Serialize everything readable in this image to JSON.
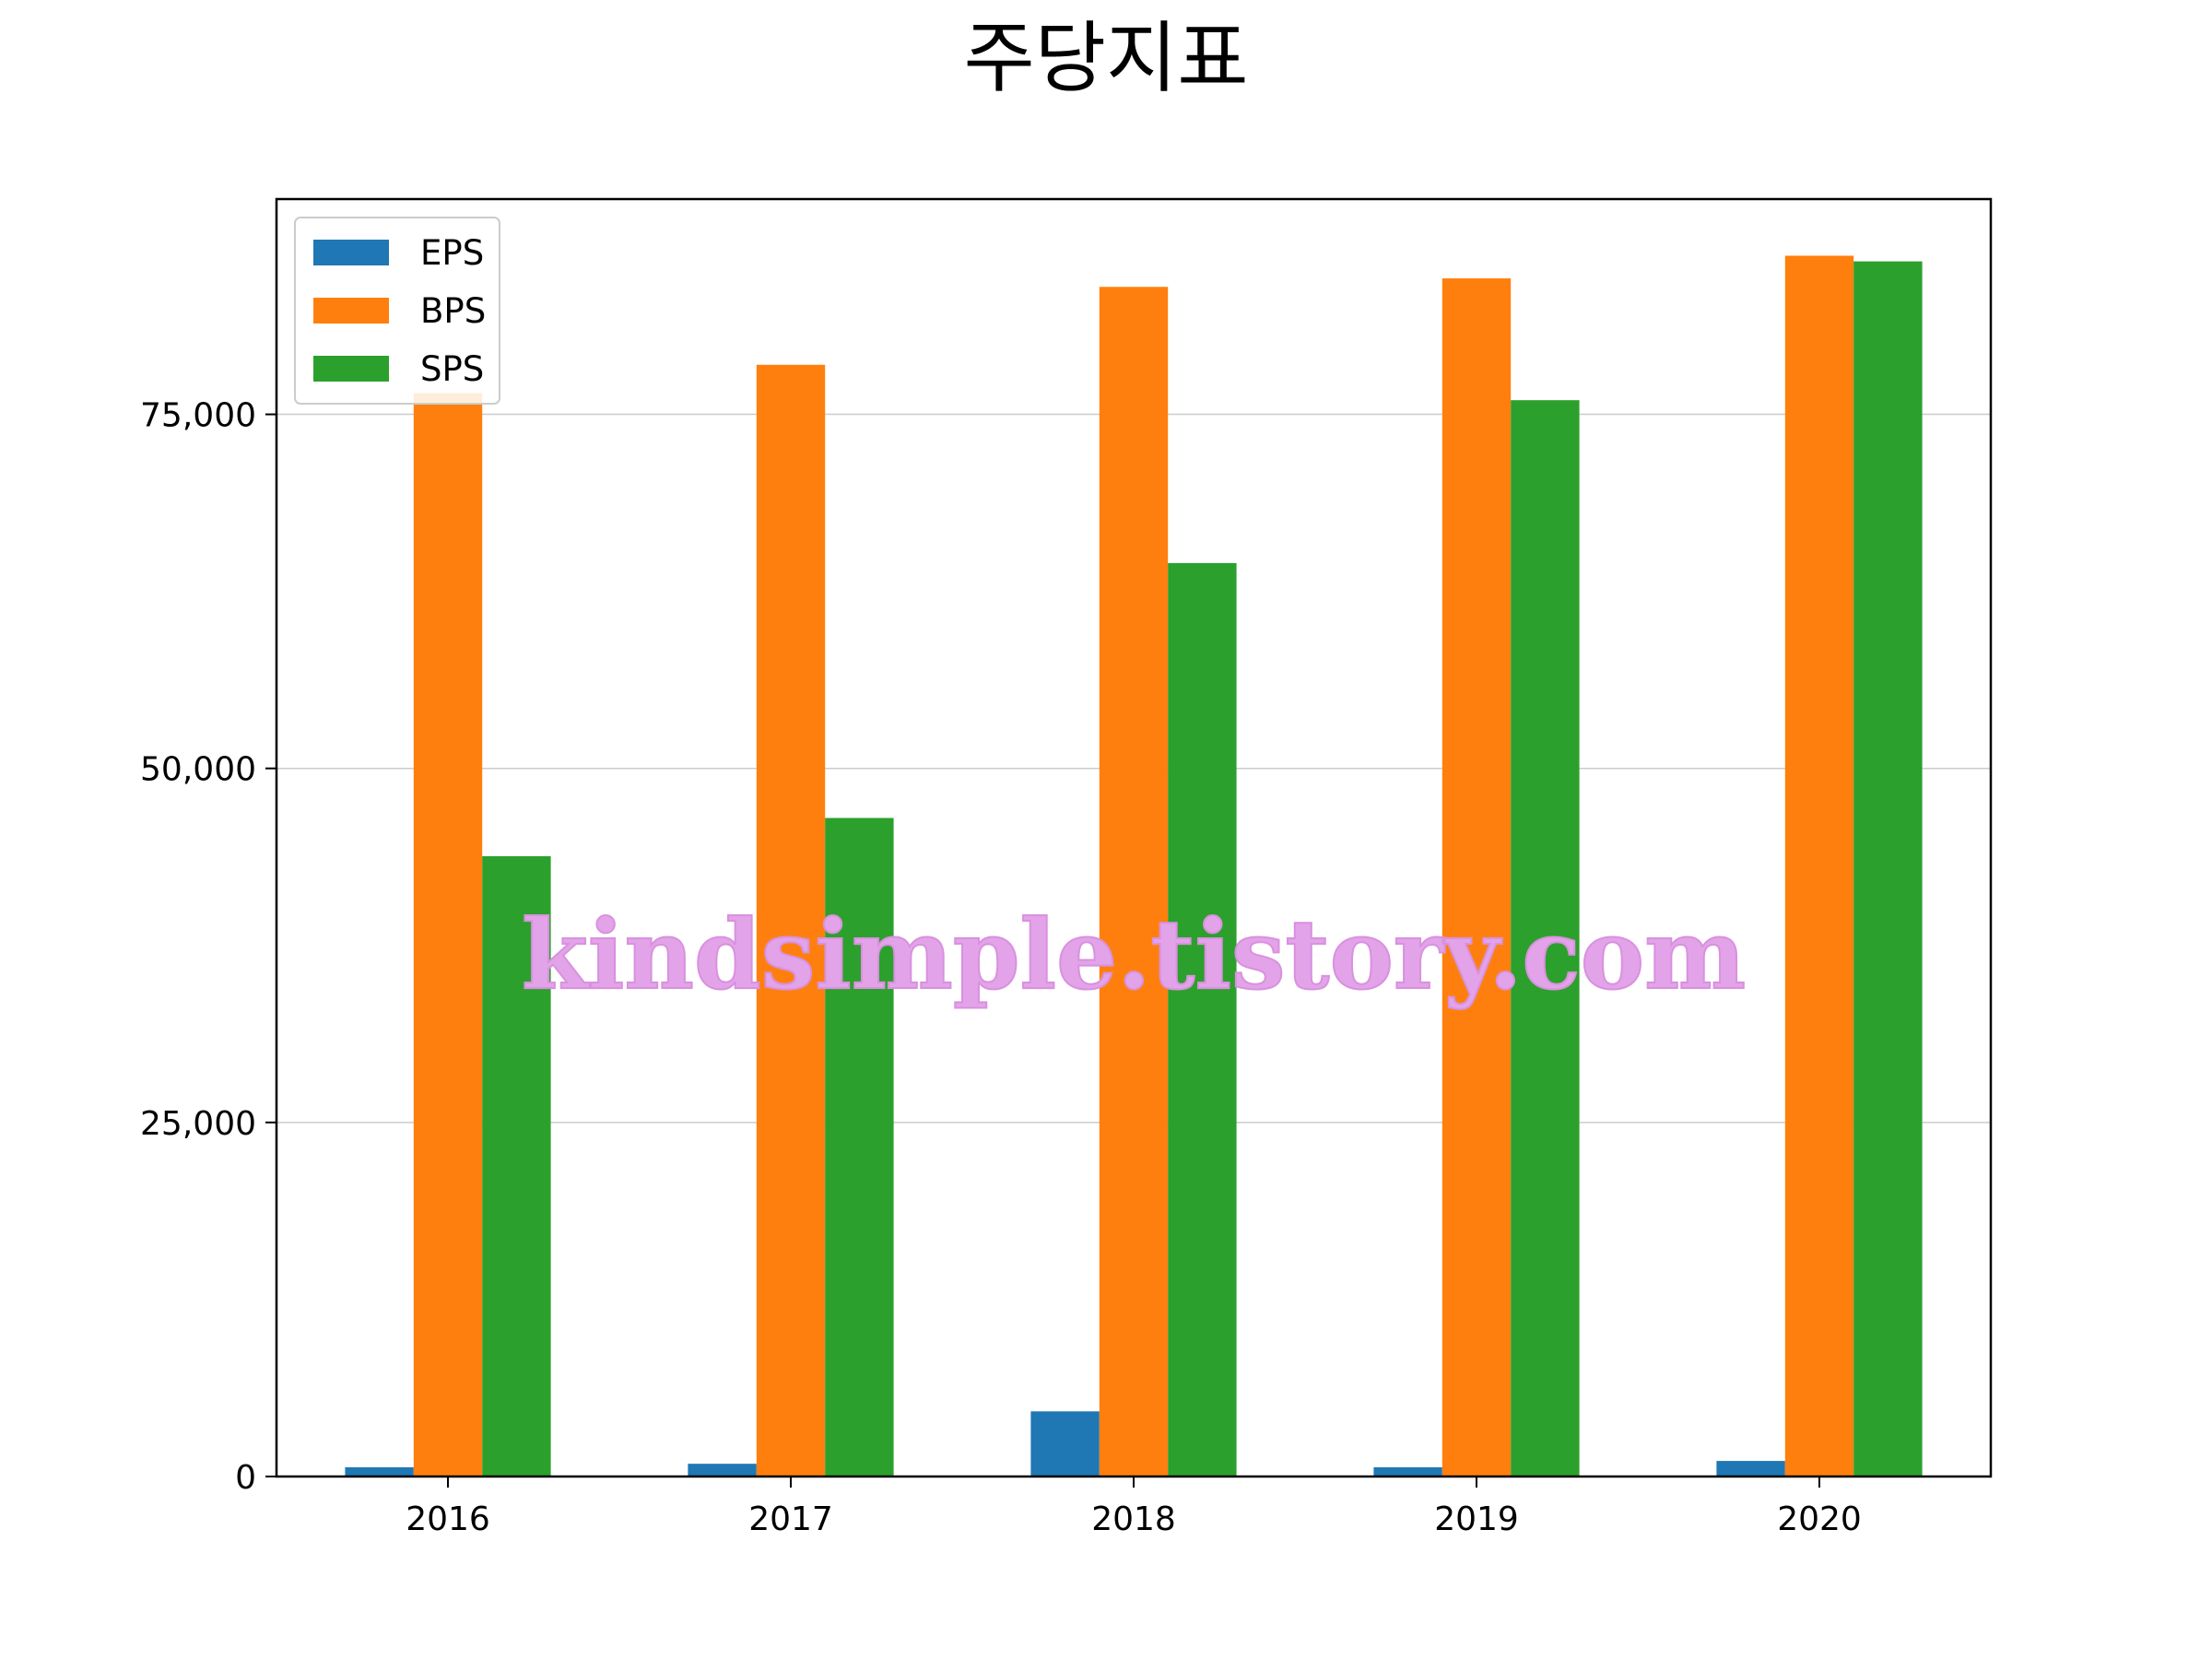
{
  "chart_data": {
    "type": "bar",
    "title": "주당지표",
    "categories": [
      "2016",
      "2017",
      "2018",
      "2019",
      "2020"
    ],
    "series": [
      {
        "name": "EPS",
        "color": "#1f77b4",
        "values": [
          650,
          900,
          4600,
          650,
          1100
        ]
      },
      {
        "name": "BPS",
        "color": "#ff7f0e",
        "values": [
          76500,
          78500,
          84000,
          84600,
          86200
        ]
      },
      {
        "name": "SPS",
        "color": "#2ca02c",
        "values": [
          43800,
          46500,
          64500,
          76000,
          85800
        ]
      }
    ],
    "ylim": [
      0,
      90200
    ],
    "yticks": [
      0,
      25000,
      50000,
      75000
    ],
    "ytick_labels": [
      "0",
      "25,000",
      "50,000",
      "75,000"
    ],
    "xlabel": "",
    "ylabel": "",
    "grid": "y",
    "legend_position": "top-left"
  },
  "watermark": {
    "text": "kindsimple.tistory.com"
  }
}
